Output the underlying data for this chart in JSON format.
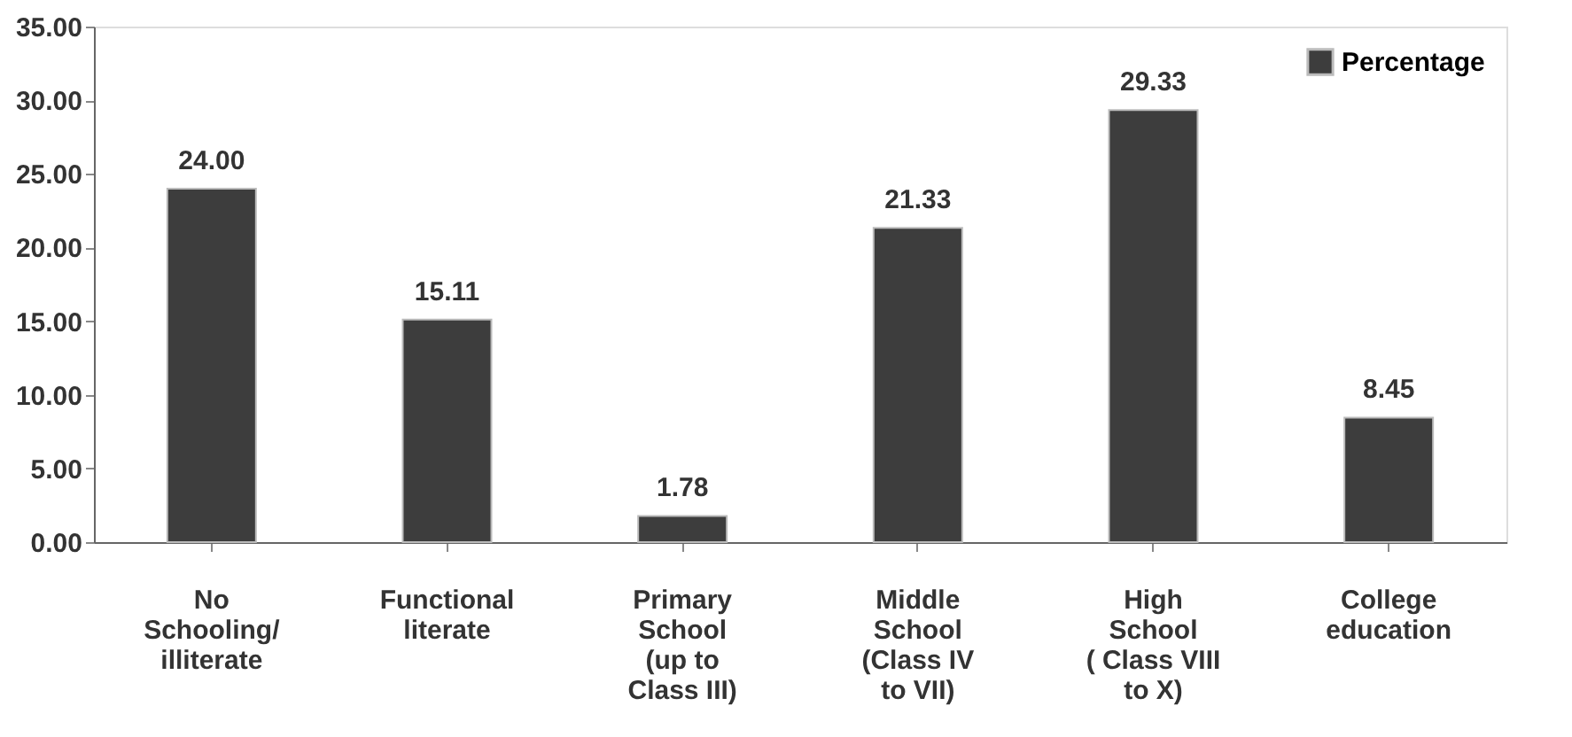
{
  "chart_data": {
    "type": "bar",
    "categories": [
      "No\nSchooling/\nilliterate",
      "Functional\nliterate",
      "Primary\nSchool\n(up to\nClass III)",
      "Middle\nSchool\n(Class IV\nto VII)",
      "High\nSchool\n( Class VIII\nto X)",
      "College\neducation"
    ],
    "series": [
      {
        "name": "Percentage",
        "color": "#3d3d3d",
        "values": [
          24.0,
          15.11,
          1.78,
          21.33,
          29.33,
          8.45
        ],
        "value_labels": [
          "24.00",
          "15.11",
          "1.78",
          "21.33",
          "29.33",
          "8.45"
        ]
      }
    ],
    "ylim": [
      0,
      35
    ],
    "yticks": [
      {
        "value": 0,
        "label": "0.00"
      },
      {
        "value": 5,
        "label": "5.00"
      },
      {
        "value": 10,
        "label": "10.00"
      },
      {
        "value": 15,
        "label": "15.00"
      },
      {
        "value": 20,
        "label": "20.00"
      },
      {
        "value": 25,
        "label": "25.00"
      },
      {
        "value": 30,
        "label": "30.00"
      },
      {
        "value": 35,
        "label": "35.00"
      }
    ],
    "grid": false,
    "legend": "top right"
  }
}
